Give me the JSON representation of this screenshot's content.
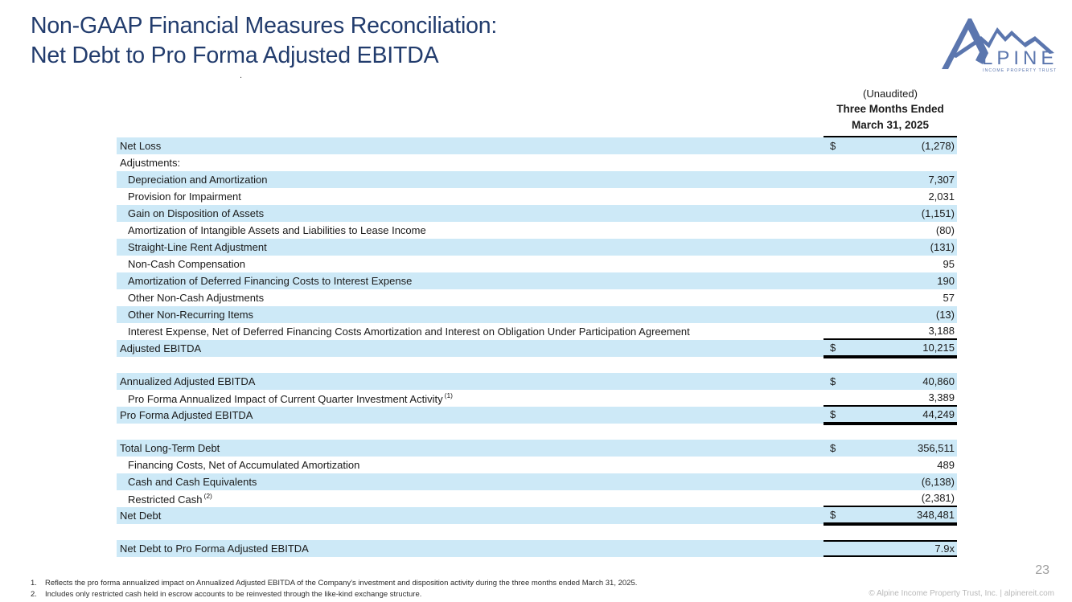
{
  "colors": {
    "accent_navy": "#223c6d",
    "row_shade": "#cde9f7",
    "logo_blue": "#5b76ae",
    "border_black": "#000000"
  },
  "header": {
    "title_line1": "Non-GAAP Financial Measures Reconciliation:",
    "title_line2": "Net Debt to Pro Forma Adjusted EBITDA",
    "stray_dot": ".",
    "logo": {
      "wordmark": "LPINE",
      "tagline": "INCOME PROPERTY TRUST"
    }
  },
  "table": {
    "unaudited": "(Unaudited)",
    "period_line1": "Three Months Ended",
    "period_line2": "March 31, 2025",
    "sections": [
      {
        "rows": [
          {
            "label": "Net Loss",
            "indent": 0,
            "dollar": "$",
            "value": "(1,278)"
          },
          {
            "label": "Adjustments:",
            "indent": 0,
            "dollar": "",
            "value": ""
          },
          {
            "label": "Depreciation and Amortization",
            "indent": 1,
            "dollar": "",
            "value": "7,307"
          },
          {
            "label": "Provision for Impairment",
            "indent": 1,
            "dollar": "",
            "value": "2,031"
          },
          {
            "label": "Gain on Disposition of Assets",
            "indent": 1,
            "dollar": "",
            "value": "(1,151)"
          },
          {
            "label": "Amortization of Intangible Assets and Liabilities to Lease Income",
            "indent": 1,
            "dollar": "",
            "value": "(80)"
          },
          {
            "label": "Straight-Line Rent Adjustment",
            "indent": 1,
            "dollar": "",
            "value": "(131)"
          },
          {
            "label": "Non-Cash Compensation",
            "indent": 1,
            "dollar": "",
            "value": "95"
          },
          {
            "label": "Amortization of Deferred Financing Costs to Interest Expense",
            "indent": 1,
            "dollar": "",
            "value": "190"
          },
          {
            "label": "Other Non-Cash Adjustments",
            "indent": 1,
            "dollar": "",
            "value": "57"
          },
          {
            "label": "Other Non-Recurring Items",
            "indent": 1,
            "dollar": "",
            "value": "(13)"
          },
          {
            "label": "Interest Expense, Net of Deferred Financing Costs Amortization and Interest on Obligation Under Participation Agreement",
            "indent": 1,
            "dollar": "",
            "value": "3,188",
            "border": "bb"
          },
          {
            "label": "Adjusted EBITDA",
            "indent": 0,
            "dollar": "$",
            "value": "10,215",
            "border": "bdbl"
          }
        ]
      },
      {
        "rows": [
          {
            "label": "Annualized Adjusted EBITDA",
            "indent": 0,
            "dollar": "$",
            "value": "40,860"
          },
          {
            "label": "Pro Forma Annualized Impact of Current Quarter Investment Activity",
            "sup": "(1)",
            "indent": 1,
            "dollar": "",
            "value": "3,389",
            "border": "bb"
          },
          {
            "label": "Pro Forma Adjusted EBITDA",
            "indent": 0,
            "dollar": "$",
            "value": "44,249",
            "border": "bdbl"
          }
        ]
      },
      {
        "rows": [
          {
            "label": "Total Long-Term Debt",
            "indent": 0,
            "dollar": "$",
            "value": "356,511"
          },
          {
            "label": "Financing Costs, Net of Accumulated Amortization",
            "indent": 1,
            "dollar": "",
            "value": "489"
          },
          {
            "label": "Cash and Cash Equivalents",
            "indent": 1,
            "dollar": "",
            "value": "(6,138)"
          },
          {
            "label": "Restricted Cash",
            "sup": "(2)",
            "indent": 1,
            "dollar": "",
            "value": "(2,381)",
            "border": "bb"
          },
          {
            "label": "Net Debt",
            "indent": 0,
            "dollar": "$",
            "value": "348,481",
            "border": "bdbl"
          }
        ]
      },
      {
        "rows": [
          {
            "label": "Net Debt to Pro Forma Adjusted EBITDA",
            "indent": 0,
            "dollar": "",
            "value": "7.9x",
            "border": "btb"
          }
        ]
      }
    ]
  },
  "footnotes": {
    "items": [
      {
        "num": "1.",
        "text": "Reflects the pro forma annualized impact on Annualized Adjusted EBITDA of the Company's investment and disposition activity during the three months ended March 31, 2025."
      },
      {
        "num": "2.",
        "text": "Includes only restricted cash held in escrow accounts to be reinvested through the like-kind exchange structure."
      }
    ]
  },
  "footer": {
    "page_number": "23",
    "copyright": "© Alpine Income Property Trust, Inc.  |  alpinereit.com"
  }
}
